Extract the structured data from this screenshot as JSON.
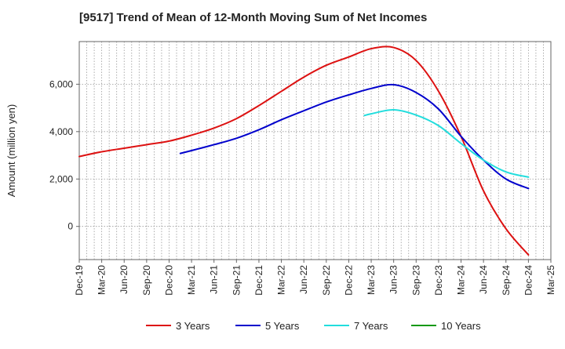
{
  "chart_data": {
    "type": "line",
    "title": "[9517]  Trend of Mean of 12-Month Moving Sum of Net Incomes",
    "ylabel": "Amount (million yen)",
    "xlabel": "",
    "ylim": [
      -1400,
      7800
    ],
    "yticks": [
      0,
      2000,
      4000,
      6000
    ],
    "ytick_labels": [
      "0",
      "2,000",
      "4,000",
      "6,000"
    ],
    "x_labels": [
      "Dec-19",
      "Mar-20",
      "Jun-20",
      "Sep-20",
      "Dec-20",
      "Mar-21",
      "Jun-21",
      "Sep-21",
      "Dec-21",
      "Mar-22",
      "Jun-22",
      "Sep-22",
      "Dec-22",
      "Mar-23",
      "Jun-23",
      "Sep-23",
      "Dec-23",
      "Mar-24",
      "Jun-24",
      "Sep-24",
      "Dec-24",
      "Mar-25"
    ],
    "grid": true,
    "legend_position": "bottom",
    "series": [
      {
        "name": "3 Years",
        "color": "#dd1111",
        "points": [
          [
            0,
            2950
          ],
          [
            1,
            3150
          ],
          [
            2,
            3300
          ],
          [
            3,
            3450
          ],
          [
            4,
            3600
          ],
          [
            5,
            3850
          ],
          [
            6,
            4150
          ],
          [
            7,
            4550
          ],
          [
            8,
            5100
          ],
          [
            9,
            5700
          ],
          [
            10,
            6300
          ],
          [
            11,
            6800
          ],
          [
            12,
            7150
          ],
          [
            13,
            7500
          ],
          [
            14,
            7550
          ],
          [
            15,
            7000
          ],
          [
            16,
            5700
          ],
          [
            17,
            3800
          ],
          [
            18,
            1500
          ],
          [
            19,
            -100
          ],
          [
            20,
            -1200
          ]
        ]
      },
      {
        "name": "5 Years",
        "color": "#0000cc",
        "points": [
          [
            4.5,
            3080
          ],
          [
            5,
            3200
          ],
          [
            6,
            3450
          ],
          [
            7,
            3720
          ],
          [
            8,
            4080
          ],
          [
            9,
            4500
          ],
          [
            10,
            4880
          ],
          [
            11,
            5250
          ],
          [
            12,
            5550
          ],
          [
            13,
            5820
          ],
          [
            14,
            5980
          ],
          [
            15,
            5650
          ],
          [
            16,
            4950
          ],
          [
            17,
            3800
          ],
          [
            18,
            2800
          ],
          [
            19,
            2000
          ],
          [
            20,
            1600
          ]
        ]
      },
      {
        "name": "7 Years",
        "color": "#22dddd",
        "points": [
          [
            12.7,
            4680
          ],
          [
            13,
            4750
          ],
          [
            14,
            4920
          ],
          [
            15,
            4700
          ],
          [
            16,
            4250
          ],
          [
            17,
            3500
          ],
          [
            18,
            2800
          ],
          [
            19,
            2300
          ],
          [
            20,
            2080
          ]
        ]
      },
      {
        "name": "10 Years",
        "color": "#119911",
        "points": []
      }
    ]
  }
}
